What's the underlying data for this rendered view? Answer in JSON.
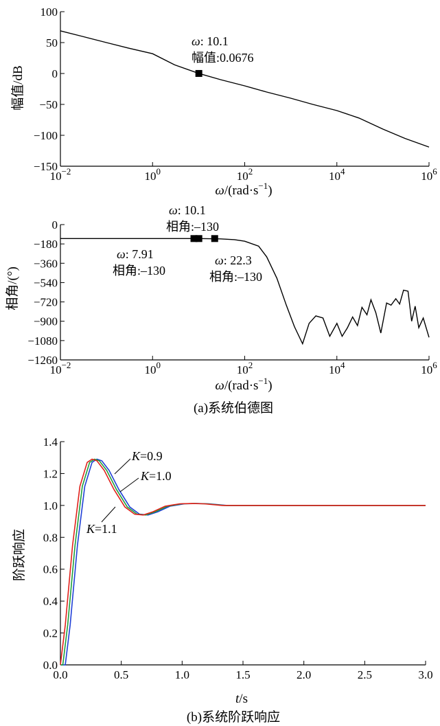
{
  "chart_data": [
    {
      "type": "line",
      "panel": "magnitude",
      "xscale": "log",
      "xlim": [
        0.01,
        1000000
      ],
      "ylim": [
        -150,
        100
      ],
      "xlabel_omega": "ω",
      "xlabel_unit": "/(rad·s",
      "xlabel_exp": "−1",
      "xlabel_close": ")",
      "ylabel": "幅值/dB",
      "x_ticks": [
        {
          "base": "10",
          "exp": "−2",
          "value": 0.01
        },
        {
          "base": "10",
          "exp": "0",
          "value": 1
        },
        {
          "base": "10",
          "exp": "2",
          "value": 100
        },
        {
          "base": "10",
          "exp": "4",
          "value": 10000
        },
        {
          "base": "10",
          "exp": "6",
          "value": 1000000
        }
      ],
      "y_ticks": [
        "100",
        "50",
        "0",
        "−50",
        "−100",
        "−150"
      ],
      "y_tick_values": [
        100,
        50,
        0,
        -50,
        -100,
        -150
      ],
      "series": [
        {
          "x": [
            0.01,
            0.03,
            0.1,
            0.3,
            1,
            3,
            10.1,
            30,
            100,
            300,
            1000,
            3000,
            10000,
            30000,
            100000,
            300000,
            1000000
          ],
          "y": [
            69,
            60,
            50,
            41,
            32,
            14,
            0.07,
            -10,
            -20,
            -30,
            -40,
            -50,
            -60,
            -72,
            -90,
            -105,
            -119
          ]
        }
      ],
      "marker": {
        "x": 10.1,
        "y": 0.0676
      },
      "annotations": [
        {
          "omega": "ω",
          "text": ": 10.1"
        },
        {
          "text": "幅值:0.0676"
        }
      ]
    },
    {
      "type": "line",
      "panel": "phase",
      "xscale": "log",
      "xlim": [
        0.01,
        1000000
      ],
      "ylim": [
        -1260,
        0
      ],
      "xlabel_omega": "ω",
      "xlabel_unit": "/(rad·s",
      "xlabel_exp": "−1",
      "xlabel_close": ")",
      "ylabel": "相角/(°)",
      "x_ticks": [
        {
          "base": "10",
          "exp": "−2",
          "value": 0.01
        },
        {
          "base": "10",
          "exp": "0",
          "value": 1
        },
        {
          "base": "10",
          "exp": "2",
          "value": 100
        },
        {
          "base": "10",
          "exp": "4",
          "value": 10000
        },
        {
          "base": "10",
          "exp": "6",
          "value": 1000000
        }
      ],
      "y_ticks": [
        "0",
        "−180",
        "−360",
        "−540",
        "−720",
        "−900",
        "−1080",
        "−1260"
      ],
      "y_tick_values": [
        0,
        -180,
        -360,
        -540,
        -720,
        -900,
        -1080,
        -1260
      ],
      "series": [
        {
          "x": [
            0.01,
            1,
            10,
            30,
            60,
            100,
            200,
            300,
            500,
            800,
            1200,
            1800,
            2500,
            3500,
            5000,
            7000,
            10000,
            13000,
            17000,
            22000,
            28000,
            35000,
            45000,
            55000,
            70000,
            90000,
            120000,
            150000,
            190000,
            230000,
            280000,
            350000,
            420000,
            500000,
            600000,
            750000,
            1000000
          ],
          "y": [
            -130,
            -130,
            -130,
            -133,
            -140,
            -155,
            -200,
            -300,
            -500,
            -750,
            -950,
            -1110,
            -920,
            -850,
            -870,
            -1040,
            -920,
            -1040,
            -960,
            -860,
            -940,
            -770,
            -840,
            -700,
            -820,
            -1010,
            -730,
            -750,
            -690,
            -740,
            -610,
            -620,
            -900,
            -760,
            -960,
            -870,
            -1050
          ]
        }
      ],
      "markers": [
        {
          "x": 7.91,
          "y": -130
        },
        {
          "x": 10.1,
          "y": -130
        },
        {
          "x": 22.3,
          "y": -130
        }
      ],
      "annotations": [
        {
          "omega": "ω",
          "text": ": 10.1"
        },
        {
          "text": "相角:–130"
        },
        {
          "omega": "ω",
          "text": ": 7.91"
        },
        {
          "text": "相角:–130"
        },
        {
          "omega": "ω",
          "text": ": 22.3"
        },
        {
          "text": "相角:–130"
        }
      ],
      "caption": "(a)系统伯德图"
    },
    {
      "type": "line",
      "panel": "step",
      "xlim": [
        0,
        3.0
      ],
      "ylim": [
        0,
        1.4
      ],
      "xlabel_t": "t",
      "xlabel_unit": "/s",
      "ylabel": "阶跃响应",
      "x_ticks": [
        "0.0",
        "0.5",
        "1.0",
        "1.5",
        "2.0",
        "2.5",
        "3.0"
      ],
      "x_tick_values": [
        0,
        0.5,
        1.0,
        1.5,
        2.0,
        2.5,
        3.0
      ],
      "y_ticks": [
        "0.0",
        "0.2",
        "0.4",
        "0.6",
        "0.8",
        "1.0",
        "1.2",
        "1.4"
      ],
      "y_tick_values": [
        0,
        0.2,
        0.4,
        0.6,
        0.8,
        1.0,
        1.2,
        1.4
      ],
      "series": [
        {
          "name": "K=0.9",
          "color": "#1f3fd6",
          "delay": 0.02,
          "x": [
            0,
            0.02,
            0.06,
            0.12,
            0.18,
            0.24,
            0.28,
            0.32,
            0.38,
            0.46,
            0.55,
            0.63,
            0.7,
            0.78,
            0.88,
            1.0,
            1.1,
            1.2,
            1.35,
            1.5,
            3.0
          ],
          "y": [
            0,
            0,
            0.25,
            0.75,
            1.12,
            1.27,
            1.29,
            1.28,
            1.22,
            1.1,
            0.99,
            0.945,
            0.94,
            0.96,
            0.995,
            1.01,
            1.012,
            1.01,
            1.0,
            1.0,
            1.0
          ]
        },
        {
          "name": "K=1.0",
          "color": "#1f9e3a",
          "delay": 0.0,
          "x": [
            0,
            0.02,
            0.06,
            0.12,
            0.18,
            0.24,
            0.28,
            0.32,
            0.38,
            0.46,
            0.55,
            0.63,
            0.7,
            0.78,
            0.88,
            1.0,
            1.1,
            1.2,
            1.35,
            1.5,
            3.0
          ],
          "y": [
            0,
            0,
            0.25,
            0.75,
            1.12,
            1.27,
            1.29,
            1.28,
            1.22,
            1.1,
            0.99,
            0.945,
            0.94,
            0.96,
            0.995,
            1.01,
            1.012,
            1.01,
            1.0,
            1.0,
            1.0
          ]
        },
        {
          "name": "K=1.1",
          "color": "#e0201a",
          "delay": -0.02,
          "x": [
            0,
            0.02,
            0.06,
            0.12,
            0.18,
            0.24,
            0.28,
            0.32,
            0.38,
            0.46,
            0.55,
            0.63,
            0.7,
            0.78,
            0.88,
            1.0,
            1.1,
            1.2,
            1.35,
            1.5,
            3.0
          ],
          "y": [
            0,
            0,
            0.25,
            0.75,
            1.12,
            1.27,
            1.29,
            1.28,
            1.22,
            1.1,
            0.99,
            0.945,
            0.94,
            0.96,
            0.995,
            1.01,
            1.012,
            1.01,
            1.0,
            1.0,
            1.0
          ]
        }
      ],
      "labels": [
        {
          "k": "K",
          "text": "=0.9"
        },
        {
          "k": "K",
          "text": "=1.0"
        },
        {
          "k": "K",
          "text": "=1.1"
        }
      ],
      "caption": "(b)系统阶跃响应"
    }
  ]
}
